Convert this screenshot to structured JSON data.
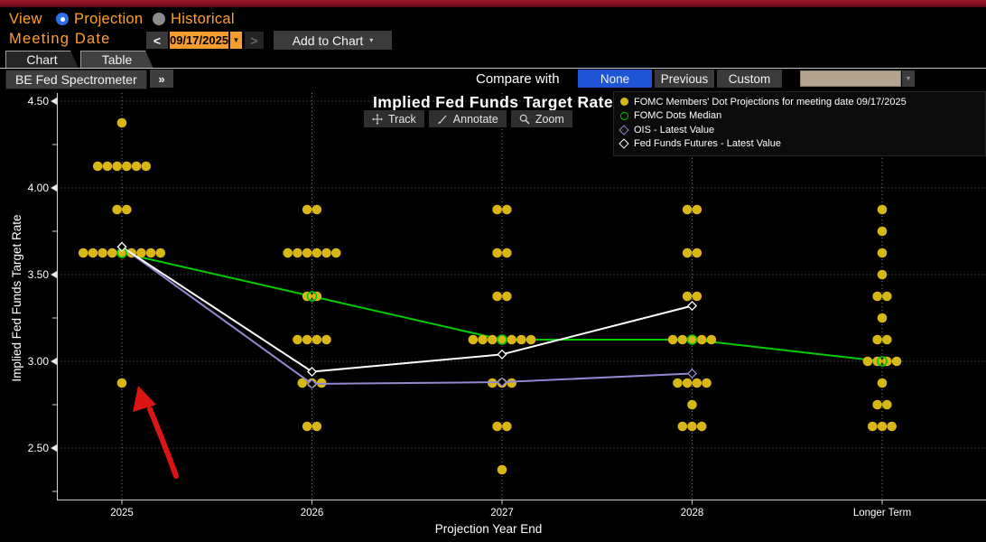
{
  "colors": {
    "accent_amber": "#ffa028",
    "selected_blue": "#1d55d4",
    "dot_yellow": "#d7b615",
    "median_green": "#00cc00",
    "ois_purple": "#9189d0",
    "futures_white": "#ffffff",
    "annotation_red": "#dc1414",
    "compare_dropdown_tan": "#b2a48e"
  },
  "controls": {
    "view_label": "View",
    "view_options": [
      {
        "label": "Projection",
        "selected": true
      },
      {
        "label": "Historical",
        "selected": false
      }
    ],
    "meeting_date_label": "Meeting Date",
    "meeting_date_value": "09/17/2025",
    "prev_label": "<",
    "next_label": ">",
    "date_caret": "▼",
    "add_to_chart_label": "Add to Chart",
    "add_to_chart_caret": "▾",
    "tabs": [
      {
        "label": "Chart",
        "active": true
      },
      {
        "label": "Table",
        "active": false
      }
    ],
    "spectrometer_label": "BE Fed Spectrometer",
    "expand_label": "»",
    "compare_with_label": "Compare with",
    "compare_options": [
      {
        "label": "None",
        "selected": true
      },
      {
        "label": "Previous",
        "selected": false
      },
      {
        "label": "Custom",
        "selected": false
      }
    ],
    "compare_dropdown_caret": "▼"
  },
  "chart": {
    "title": "Implied Fed Funds Target Rate",
    "tools": [
      {
        "icon": "track-icon",
        "label": "Track"
      },
      {
        "icon": "annotate-icon",
        "label": "Annotate"
      },
      {
        "icon": "zoom-icon",
        "label": "Zoom"
      }
    ],
    "legend": [
      {
        "marker": "filled-circle",
        "color": "#d7b615",
        "label": "FOMC Members' Dot Projections for meeting date 09/17/2025"
      },
      {
        "marker": "open-circle",
        "color": "#00cc00",
        "label": "FOMC Dots Median"
      },
      {
        "marker": "open-diamond",
        "color": "#9189d0",
        "label": "OIS - Latest Value"
      },
      {
        "marker": "open-diamond",
        "color": "#ffffff",
        "label": "Fed Funds Futures - Latest Value"
      }
    ]
  },
  "chart_data": {
    "type": "scatter",
    "title": "Implied Fed Funds Target Rate",
    "xlabel": "Projection Year End",
    "ylabel": "Implied Fed Funds Target Rate",
    "categories": [
      "2025",
      "2026",
      "2027",
      "2028",
      "Longer Term"
    ],
    "yticks": [
      "2.50",
      "3.00",
      "3.50",
      "4.00",
      "4.50"
    ],
    "ylim": [
      2.2,
      4.6
    ],
    "grid": true,
    "legend_position": "top-right",
    "dot_color": "#d7b615",
    "dots": [
      {
        "category": "2025",
        "groups": [
          {
            "value": 4.375,
            "count": 1
          },
          {
            "value": 4.125,
            "count": 6
          },
          {
            "value": 3.875,
            "count": 2
          },
          {
            "value": 3.625,
            "count": 9
          },
          {
            "value": 2.875,
            "count": 1
          }
        ]
      },
      {
        "category": "2026",
        "groups": [
          {
            "value": 3.875,
            "count": 2
          },
          {
            "value": 3.625,
            "count": 6
          },
          {
            "value": 3.375,
            "count": 2
          },
          {
            "value": 3.125,
            "count": 4
          },
          {
            "value": 2.875,
            "count": 3
          },
          {
            "value": 2.625,
            "count": 2
          }
        ]
      },
      {
        "category": "2027",
        "groups": [
          {
            "value": 3.875,
            "count": 2
          },
          {
            "value": 3.625,
            "count": 2
          },
          {
            "value": 3.375,
            "count": 2
          },
          {
            "value": 3.125,
            "count": 7
          },
          {
            "value": 2.875,
            "count": 3
          },
          {
            "value": 2.625,
            "count": 2
          },
          {
            "value": 2.375,
            "count": 1
          }
        ]
      },
      {
        "category": "2028",
        "groups": [
          {
            "value": 3.875,
            "count": 2
          },
          {
            "value": 3.625,
            "count": 2
          },
          {
            "value": 3.375,
            "count": 2
          },
          {
            "value": 3.125,
            "count": 5
          },
          {
            "value": 2.875,
            "count": 4
          },
          {
            "value": 2.75,
            "count": 1
          },
          {
            "value": 2.625,
            "count": 3
          }
        ]
      },
      {
        "category": "Longer Term",
        "groups": [
          {
            "value": 3.875,
            "count": 1
          },
          {
            "value": 3.75,
            "count": 1
          },
          {
            "value": 3.625,
            "count": 1
          },
          {
            "value": 3.5,
            "count": 1
          },
          {
            "value": 3.375,
            "count": 2
          },
          {
            "value": 3.25,
            "count": 1
          },
          {
            "value": 3.125,
            "count": 2
          },
          {
            "value": 3.0,
            "count": 4
          },
          {
            "value": 2.875,
            "count": 1
          },
          {
            "value": 2.75,
            "count": 2
          },
          {
            "value": 2.625,
            "count": 3
          }
        ]
      }
    ],
    "series": [
      {
        "name": "FOMC Dots Median",
        "color": "#00cc00",
        "marker": "open-circle",
        "values": [
          3.625,
          3.375,
          3.125,
          3.125,
          3.0
        ]
      },
      {
        "name": "OIS - Latest Value",
        "color": "#9189d0",
        "marker": "open-diamond",
        "values": [
          3.66,
          2.87,
          2.88,
          2.93,
          null
        ]
      },
      {
        "name": "Fed Funds Futures - Latest Value",
        "color": "#ffffff",
        "marker": "open-diamond",
        "values": [
          3.66,
          2.94,
          3.04,
          3.32,
          null
        ]
      }
    ],
    "annotation": {
      "type": "arrow",
      "color": "#dc1414",
      "points_at": {
        "category": "2025",
        "value": 2.875
      }
    }
  }
}
